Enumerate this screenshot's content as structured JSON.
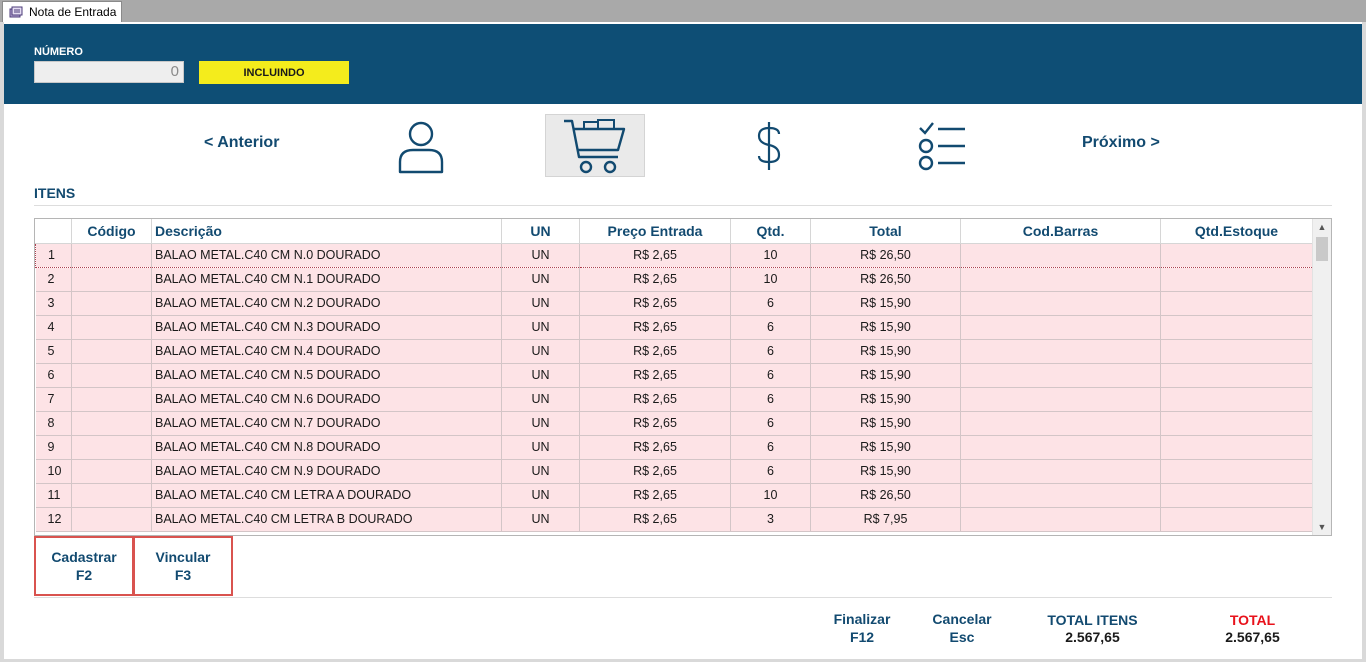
{
  "tab": {
    "title": "Nota de Entrada"
  },
  "header": {
    "numero_label": "NÚMERO",
    "numero_value": "0",
    "status": "INCLUINDO",
    "status_color": "#f4ec1c",
    "background_color": "#0e4e75"
  },
  "nav": {
    "prev_label": "< Anterior",
    "next_label": "Próximo >",
    "steps": [
      {
        "icon": "person-icon",
        "active": false
      },
      {
        "icon": "shopping-cart-icon",
        "active": true
      },
      {
        "icon": "dollar-icon",
        "active": false
      },
      {
        "icon": "checklist-icon",
        "active": false
      }
    ]
  },
  "section": {
    "title": "ITENS"
  },
  "grid": {
    "columns": [
      "",
      "Código",
      "Descrição",
      "UN",
      "Preço Entrada",
      "Qtd.",
      "Total",
      "Cod.Barras",
      "Qtd.Estoque"
    ],
    "rows": [
      [
        "1",
        "",
        "BALAO METAL.C40 CM N.0  DOURADO",
        "UN",
        "R$ 2,65",
        "10",
        "R$ 26,50",
        "",
        ""
      ],
      [
        "2",
        "",
        "BALAO METAL.C40 CM N.1  DOURADO",
        "UN",
        "R$ 2,65",
        "10",
        "R$ 26,50",
        "",
        ""
      ],
      [
        "3",
        "",
        "BALAO METAL.C40 CM N.2  DOURADO",
        "UN",
        "R$ 2,65",
        "6",
        "R$ 15,90",
        "",
        ""
      ],
      [
        "4",
        "",
        "BALAO METAL.C40 CM N.3  DOURADO",
        "UN",
        "R$ 2,65",
        "6",
        "R$ 15,90",
        "",
        ""
      ],
      [
        "5",
        "",
        "BALAO METAL.C40 CM N.4  DOURADO",
        "UN",
        "R$ 2,65",
        "6",
        "R$ 15,90",
        "",
        ""
      ],
      [
        "6",
        "",
        "BALAO METAL.C40 CM N.5  DOURADO",
        "UN",
        "R$ 2,65",
        "6",
        "R$ 15,90",
        "",
        ""
      ],
      [
        "7",
        "",
        "BALAO METAL.C40 CM N.6  DOURADO",
        "UN",
        "R$ 2,65",
        "6",
        "R$ 15,90",
        "",
        ""
      ],
      [
        "8",
        "",
        "BALAO METAL.C40 CM N.7  DOURADO",
        "UN",
        "R$ 2,65",
        "6",
        "R$ 15,90",
        "",
        ""
      ],
      [
        "9",
        "",
        "BALAO METAL.C40 CM N.8  DOURADO",
        "UN",
        "R$ 2,65",
        "6",
        "R$ 15,90",
        "",
        ""
      ],
      [
        "10",
        "",
        "BALAO METAL.C40 CM N.9  DOURADO",
        "UN",
        "R$ 2,65",
        "6",
        "R$ 15,90",
        "",
        ""
      ],
      [
        "11",
        "",
        "BALAO METAL.C40 CM LETRA A DOURADO",
        "UN",
        "R$ 2,65",
        "10",
        "R$ 26,50",
        "",
        ""
      ],
      [
        "12",
        "",
        "BALAO METAL.C40 CM LETRA B DOURADO",
        "UN",
        "R$ 2,65",
        "3",
        "R$ 7,95",
        "",
        ""
      ]
    ],
    "selected_row": 0,
    "row_color": "#fde3e6"
  },
  "actions": {
    "cadastrar": {
      "label": "Cadastrar",
      "key": "F2"
    },
    "vincular": {
      "label": "Vincular",
      "key": "F3"
    }
  },
  "footer": {
    "finalizar": {
      "label": "Finalizar",
      "key": "F12"
    },
    "cancelar": {
      "label": "Cancelar",
      "key": "Esc"
    },
    "total_itens": {
      "label": "TOTAL ITENS",
      "value": "2.567,65",
      "color": "#124a70"
    },
    "total": {
      "label": "TOTAL",
      "value": "2.567,65",
      "color": "#e8121b"
    }
  }
}
